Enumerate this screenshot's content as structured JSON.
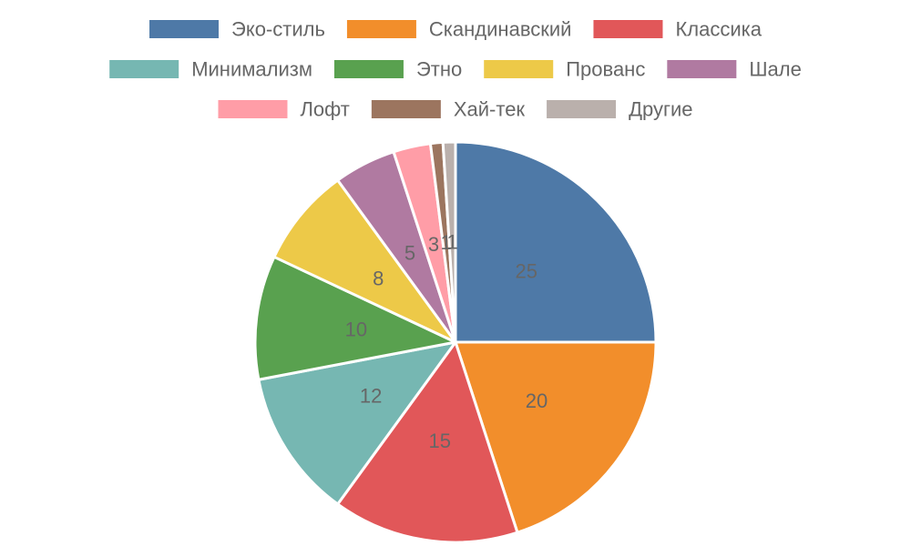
{
  "chart_data": {
    "type": "pie",
    "legend_position": "top",
    "slices": [
      {
        "label": "Эко-стиль",
        "value": 25,
        "color": "#4e79a7"
      },
      {
        "label": "Скандинавский",
        "value": 20,
        "color": "#f28e2b"
      },
      {
        "label": "Классика",
        "value": 15,
        "color": "#e15759"
      },
      {
        "label": "Минимализм",
        "value": 12,
        "color": "#76b7b2"
      },
      {
        "label": "Этно",
        "value": 10,
        "color": "#59a14f"
      },
      {
        "label": "Прованс",
        "value": 8,
        "color": "#edc948"
      },
      {
        "label": "Шале",
        "value": 5,
        "color": "#b07aa1"
      },
      {
        "label": "Лофт",
        "value": 3,
        "color": "#ff9da7"
      },
      {
        "label": "Хай-тек",
        "value": 1,
        "color": "#9c755f"
      },
      {
        "label": "Другие",
        "value": 1,
        "color": "#bab0ac"
      }
    ],
    "text_color": "#666666"
  }
}
